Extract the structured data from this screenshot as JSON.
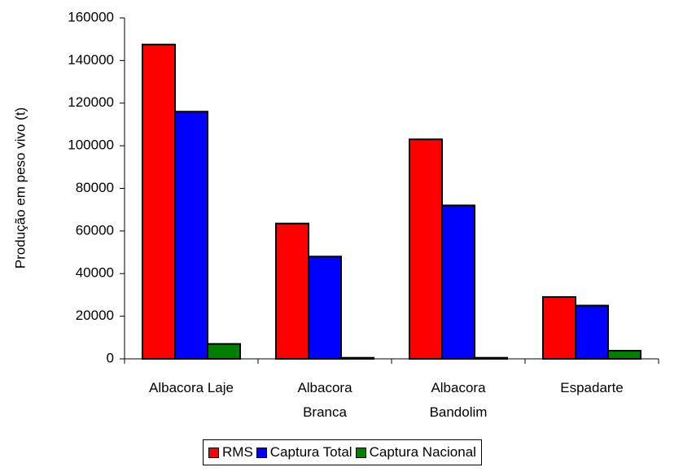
{
  "chart_data": {
    "type": "bar",
    "ylabel": "Produção em peso vivo (t)",
    "categories": [
      "Albacora Laje",
      "Albacora Branca",
      "Albacora Bandolim",
      "Espadarte"
    ],
    "series": [
      {
        "name": "RMS",
        "color": "#ff0000",
        "values": [
          147500,
          63500,
          103000,
          29000
        ]
      },
      {
        "name": "Captura Total",
        "color": "#0000ff",
        "values": [
          116000,
          48000,
          72000,
          25000
        ]
      },
      {
        "name": "Captura Nacional",
        "color": "#008000",
        "values": [
          7000,
          500,
          500,
          3800
        ]
      }
    ],
    "ylim": [
      0,
      160000
    ],
    "yticks": [
      0,
      20000,
      40000,
      60000,
      80000,
      100000,
      120000,
      140000,
      160000
    ],
    "legend": "bottom"
  }
}
